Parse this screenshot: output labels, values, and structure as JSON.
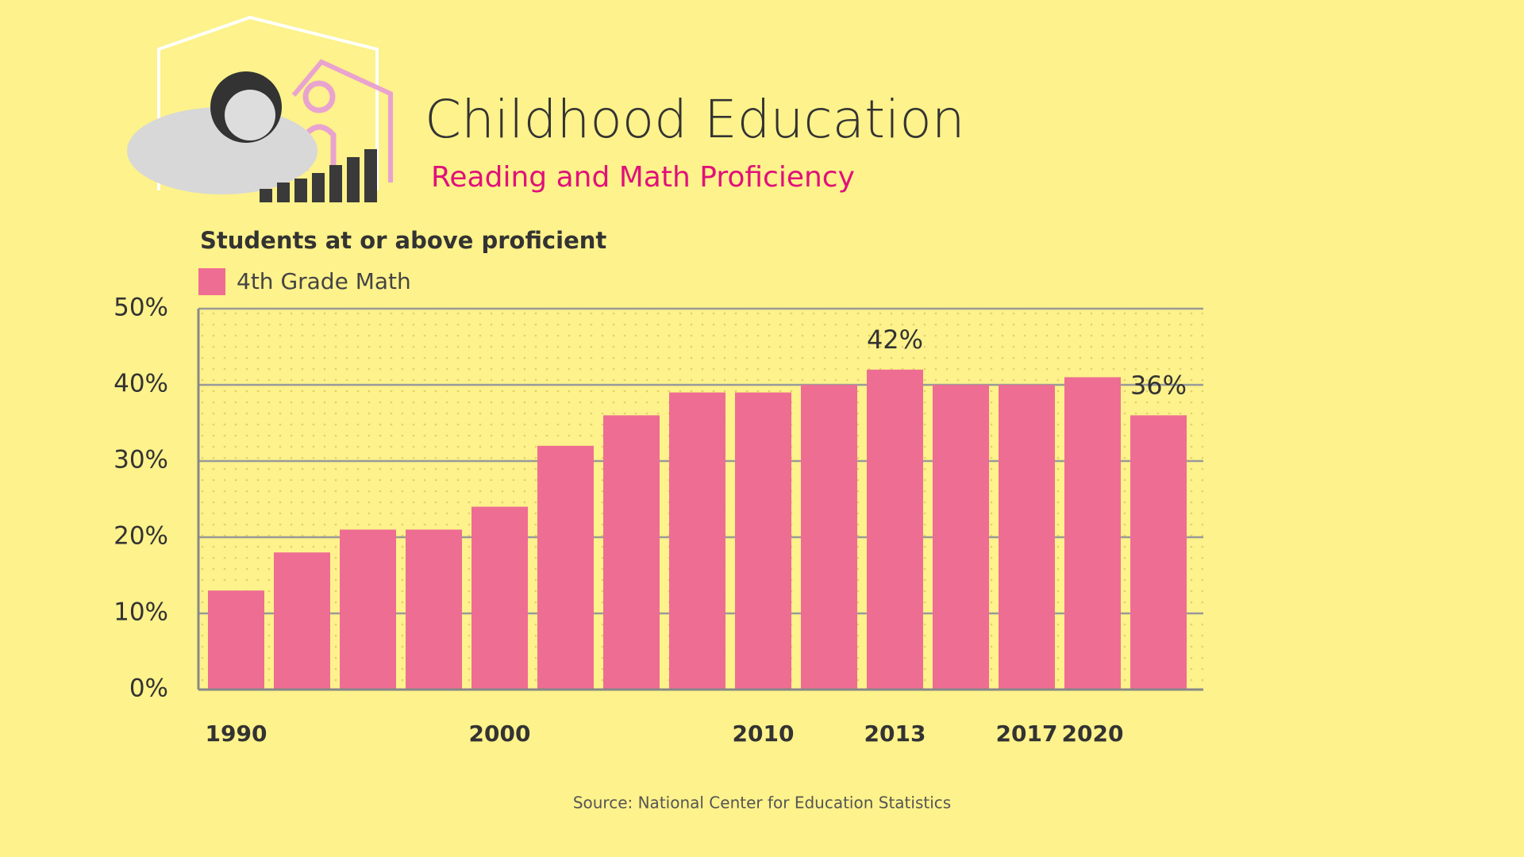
{
  "header": {
    "title": "Childhood Education",
    "subtitle": "Reading and Math Proficiency"
  },
  "chart_data": {
    "type": "bar",
    "y_axis_label": "Students at or above proficient",
    "series": [
      {
        "name": "4th Grade Math",
        "color": "#ee6d93",
        "values": [
          13,
          18,
          21,
          21,
          24,
          32,
          36,
          39,
          39,
          40,
          42,
          40,
          40,
          41,
          36
        ],
        "value_labels": [
          null,
          null,
          null,
          null,
          null,
          null,
          null,
          null,
          null,
          null,
          "42%",
          null,
          null,
          null,
          "36%"
        ]
      }
    ],
    "categories": [
      "1990",
      null,
      null,
      null,
      "2000",
      null,
      null,
      null,
      "2010",
      null,
      "2013",
      null,
      "2017",
      "2020",
      null
    ],
    "ylim": [
      0,
      50
    ],
    "yticks": [
      {
        "value": 0,
        "label": "0%"
      },
      {
        "value": 10,
        "label": "10%"
      },
      {
        "value": 20,
        "label": "20%"
      },
      {
        "value": 30,
        "label": "30%"
      },
      {
        "value": 40,
        "label": "40%"
      },
      {
        "value": 50,
        "label": "50%"
      }
    ],
    "grid": true,
    "source": "Source: National Center for Education Statistics"
  }
}
